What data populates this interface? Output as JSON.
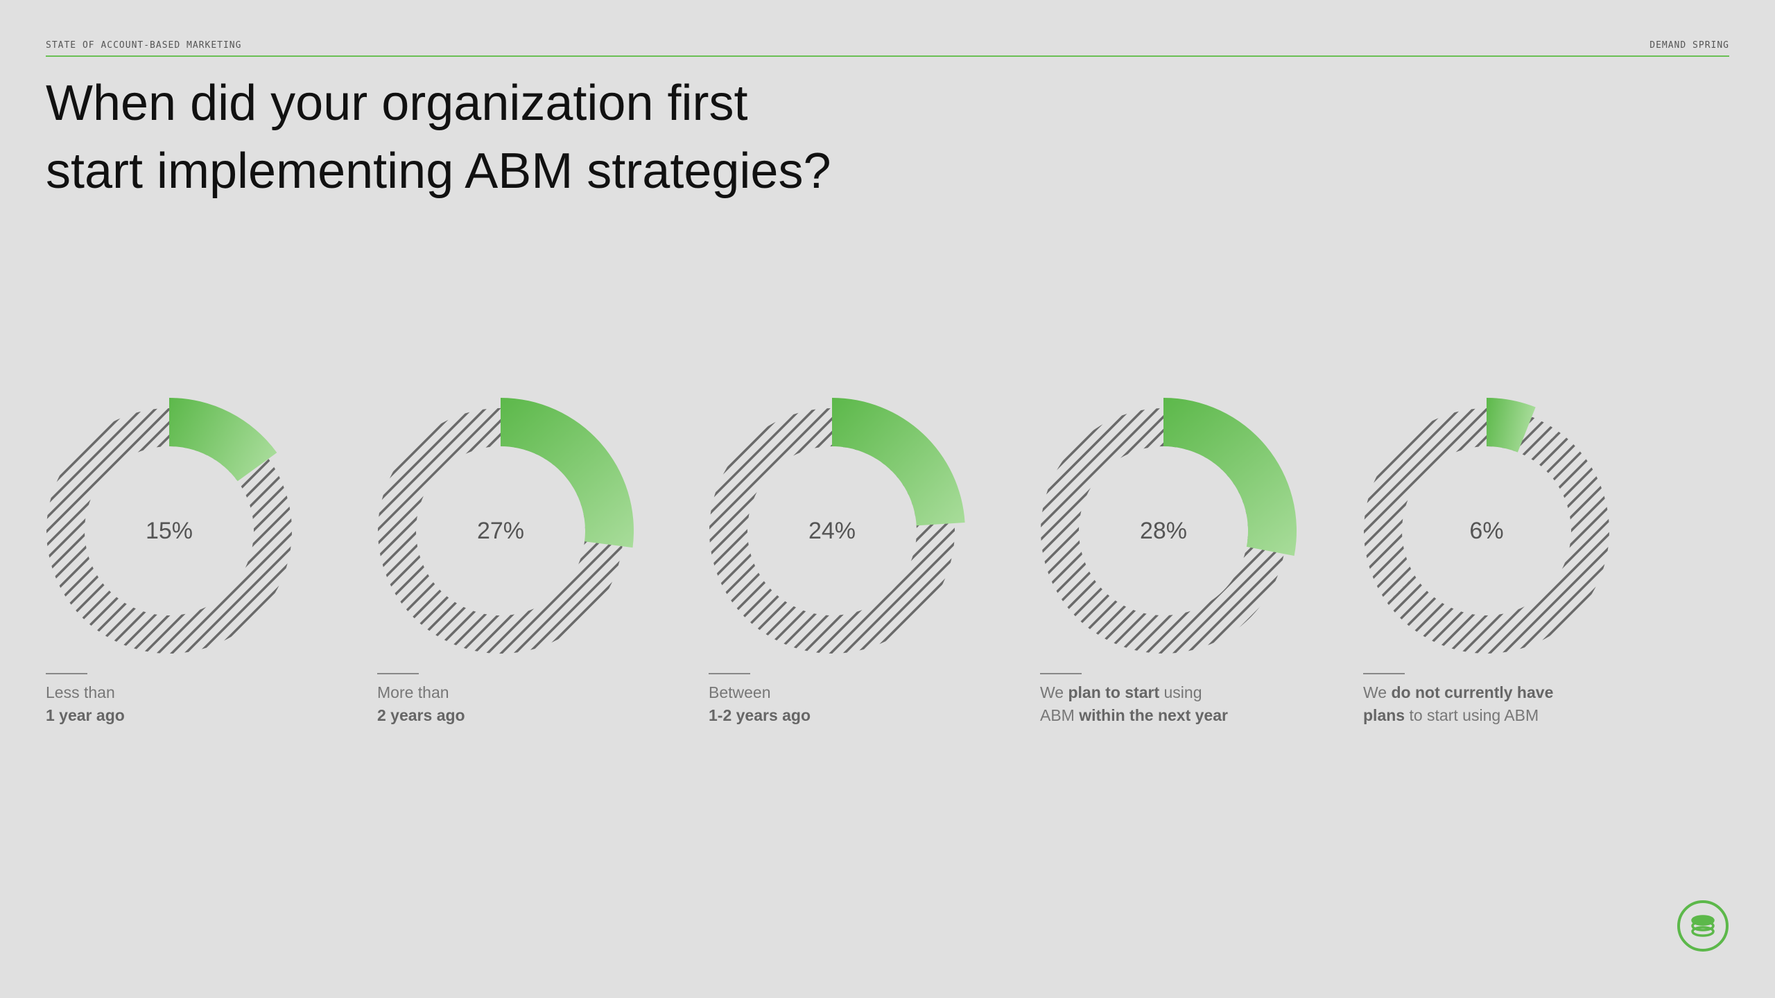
{
  "header": {
    "left": "STATE OF ACCOUNT-BASED MARKETING",
    "right": "DEMAND SPRING"
  },
  "title": {
    "line1": "When did your organization first",
    "line2": "start implementing ABM strategies?"
  },
  "colors": {
    "accent": "#5cb84a",
    "accent_light": "#a8dc9a",
    "hatch": "#6a6a6a",
    "background": "#e0e0e0"
  },
  "chart_data": {
    "type": "pie",
    "unit": "%",
    "categories": [
      "Less than 1 year ago",
      "More than 2 years ago",
      "Between 1-2 years ago",
      "We plan to start using ABM within the next year",
      "We do not currently have plans to start using ABM"
    ],
    "values": [
      15,
      27,
      24,
      28,
      6
    ],
    "labels": [
      "15%",
      "27%",
      "24%",
      "28%",
      "6%"
    ],
    "captions": [
      [
        {
          "t": "Less than",
          "b": false
        },
        {
          "br": true
        },
        {
          "t": "1 year ago",
          "b": true
        }
      ],
      [
        {
          "t": "More than",
          "b": false
        },
        {
          "br": true
        },
        {
          "t": "2 years ago",
          "b": true
        }
      ],
      [
        {
          "t": "Between",
          "b": false
        },
        {
          "br": true
        },
        {
          "t": "1-2 years ago",
          "b": true
        }
      ],
      [
        {
          "t": "We ",
          "b": false
        },
        {
          "t": "plan to start",
          "b": true
        },
        {
          "t": " using",
          "b": false
        },
        {
          "br": true
        },
        {
          "t": "ABM ",
          "b": false
        },
        {
          "t": "within the next year",
          "b": true
        }
      ],
      [
        {
          "t": "We ",
          "b": false
        },
        {
          "t": "do not currently have",
          "b": true
        },
        {
          "br": true
        },
        {
          "t": "plans",
          "b": true
        },
        {
          "t": " to start using ABM",
          "b": false
        }
      ]
    ]
  },
  "logo": {
    "icon": "stacked-coins-icon"
  }
}
